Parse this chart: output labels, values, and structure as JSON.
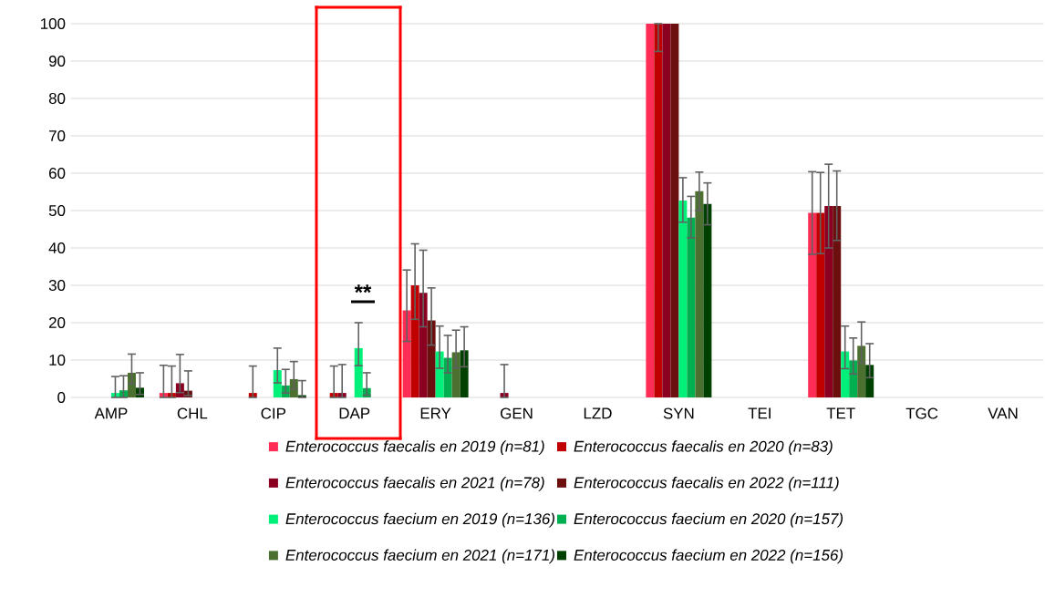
{
  "chart_data": {
    "type": "bar",
    "categories": [
      "AMP",
      "CHL",
      "CIP",
      "DAP",
      "ERY",
      "GEN",
      "LZD",
      "SYN",
      "TEI",
      "TET",
      "TGC",
      "VAN"
    ],
    "series": [
      {
        "name": "Enterococcus faecalis en 2019 (n=81)",
        "color": "#ff2d55",
        "values": [
          0,
          1.2,
          0,
          0,
          23.3,
          0,
          0,
          100,
          0,
          49.4,
          0,
          0
        ],
        "errors": [
          null,
          [
            0,
            8.6
          ],
          null,
          null,
          [
            15.0,
            34.1
          ],
          null,
          null,
          null,
          null,
          [
            38.3,
            60.4
          ],
          null,
          null
        ]
      },
      {
        "name": "Enterococcus faecalis en 2020 (n=83)",
        "color": "#c00000",
        "values": [
          0,
          1.2,
          1.2,
          1.2,
          30.0,
          0,
          0,
          100,
          0,
          49.4,
          0,
          0
        ],
        "errors": [
          null,
          [
            0,
            8.4
          ],
          [
            0,
            8.4
          ],
          [
            0,
            8.4
          ],
          [
            20.9,
            41.1
          ],
          null,
          null,
          [
            92.6,
            100
          ],
          null,
          [
            38.5,
            60.2
          ],
          null,
          null
        ]
      },
      {
        "name": "Enterococcus faecalis en 2021 (n=78)",
        "color": "#8b0020",
        "values": [
          0,
          3.8,
          0,
          1.2,
          28.0,
          1.2,
          0,
          100,
          0,
          51.2,
          0,
          0
        ],
        "errors": [
          null,
          [
            1.3,
            11.5
          ],
          null,
          [
            0,
            8.8
          ],
          [
            18.9,
            39.4
          ],
          [
            0,
            8.8
          ],
          null,
          null,
          null,
          [
            40.0,
            62.4
          ],
          null,
          null
        ]
      },
      {
        "name": "Enterococcus faecalis en 2022 (n=111)",
        "color": "#6b0f0f",
        "values": [
          0,
          1.8,
          0,
          0,
          20.6,
          0,
          0,
          100,
          0,
          51.2,
          0,
          0
        ],
        "errors": [
          null,
          [
            0.5,
            7.1
          ],
          null,
          null,
          [
            14.0,
            29.3
          ],
          null,
          null,
          null,
          null,
          [
            42.0,
            60.6
          ],
          null,
          null
        ]
      },
      {
        "name": "Enterococcus faecium en 2019 (n=136)",
        "color": "#00f07a",
        "values": [
          1.2,
          0,
          7.3,
          13.2,
          12.3,
          0,
          0,
          52.7,
          0,
          12.3,
          0,
          0
        ],
        "errors": [
          [
            0,
            5.6
          ],
          null,
          [
            3.9,
            13.2
          ],
          [
            8.5,
            20.0
          ],
          [
            7.8,
            19.1
          ],
          null,
          null,
          [
            46.9,
            58.8
          ],
          null,
          [
            7.7,
            19.1
          ],
          null,
          null
        ]
      },
      {
        "name": "Enterococcus faecium en 2020 (n=157)",
        "color": "#00b050",
        "values": [
          1.9,
          0,
          3.2,
          2.5,
          10.6,
          0,
          0,
          48.1,
          0,
          9.9,
          0,
          0
        ],
        "errors": [
          [
            0,
            5.8
          ],
          null,
          [
            1.2,
            7.5
          ],
          [
            0.6,
            6.6
          ],
          [
            6.6,
            16.6
          ],
          null,
          null,
          [
            42.7,
            53.8
          ],
          null,
          [
            6.3,
            15.9
          ],
          null,
          null
        ]
      },
      {
        "name": "Enterococcus faecium en 2021 (n=171)",
        "color": "#4b7030",
        "values": [
          6.6,
          0,
          4.9,
          0,
          12.1,
          0,
          0,
          55.2,
          0,
          13.8,
          0,
          0
        ],
        "errors": [
          [
            3.7,
            11.6
          ],
          null,
          [
            2.3,
            9.6
          ],
          null,
          [
            7.9,
            18.0
          ],
          null,
          null,
          [
            50.0,
            60.3
          ],
          null,
          [
            9.2,
            20.2
          ],
          null,
          null
        ]
      },
      {
        "name": "Enterococcus faecium en 2022 (n=156)",
        "color": "#004000",
        "values": [
          2.6,
          0,
          0.6,
          0,
          12.6,
          0,
          0,
          51.8,
          0,
          8.7,
          0,
          0
        ],
        "errors": [
          [
            0.8,
            6.6
          ],
          null,
          [
            0,
            4.5
          ],
          null,
          [
            8.2,
            18.9
          ],
          null,
          null,
          [
            46.2,
            57.4
          ],
          null,
          [
            5.3,
            14.4
          ],
          null,
          null
        ]
      }
    ],
    "ylim": [
      0,
      100
    ],
    "yticks": [
      0,
      10,
      20,
      30,
      40,
      50,
      60,
      70,
      80,
      90,
      100
    ],
    "grid": "y",
    "legend": "bottom",
    "annotations": [
      "**"
    ]
  }
}
